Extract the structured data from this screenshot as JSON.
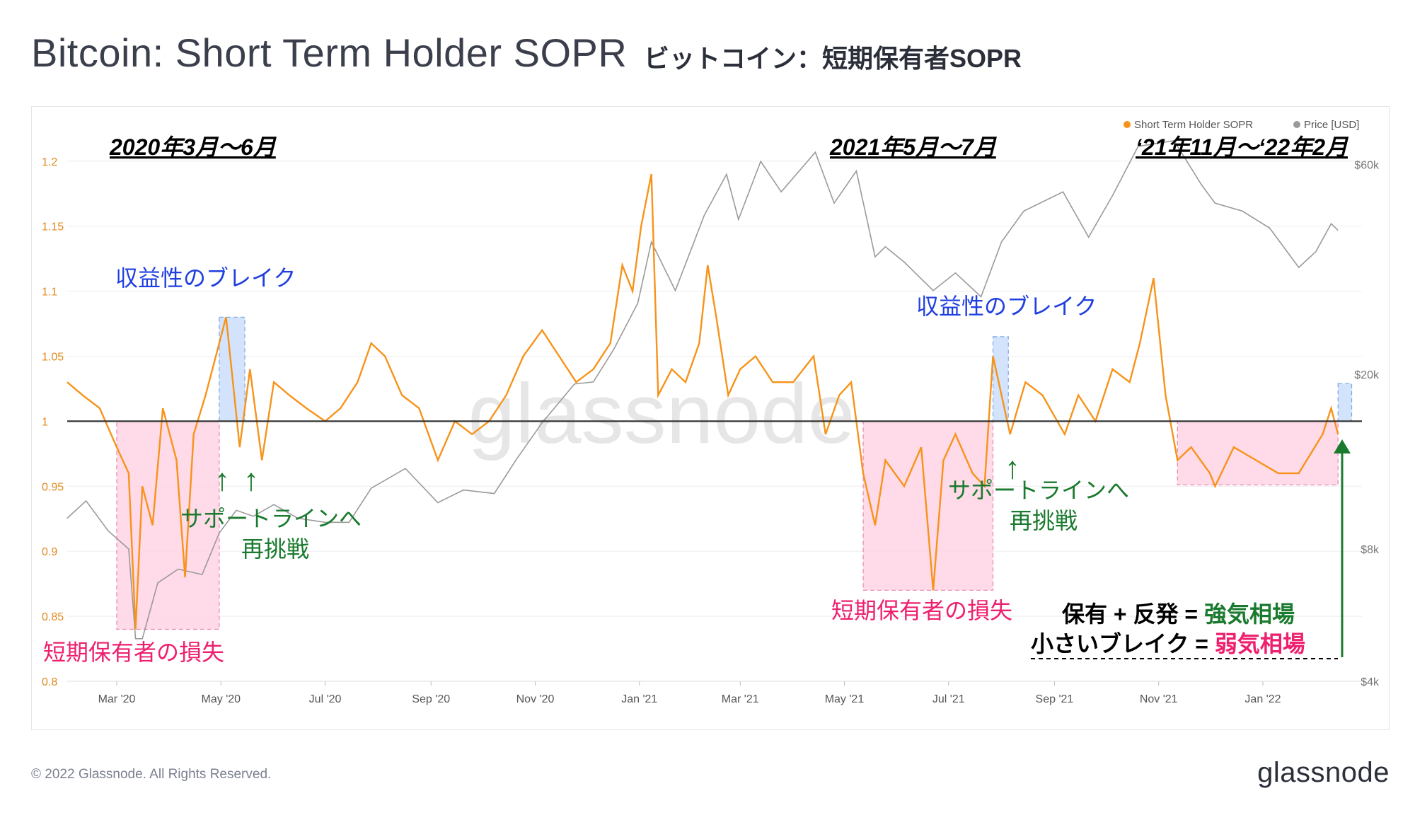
{
  "header": {
    "title": "Bitcoin: Short Term Holder SOPR",
    "subtitle": "ビットコイン：短期保有者SOPR"
  },
  "footer": {
    "copyright": "© 2022 Glassnode. All Rights Reserved.",
    "logo": "glassnode"
  },
  "watermark": "glassnode",
  "colors": {
    "sopr": "#f7931a",
    "price": "#9a9a9a",
    "baseline": "#333333",
    "loss_fill": "#ffd6e6",
    "loss_border": "#e57aa3",
    "profit_fill": "#cfe1fb",
    "profit_border": "#6f9ee3",
    "blue_text": "#1f3fe0",
    "green_text": "#1a7a2e",
    "pink_text": "#ee1f6e",
    "black_text": "#000000"
  },
  "chart_data": {
    "type": "line",
    "title": "Bitcoin: Short Term Holder SOPR",
    "x_ticks": [
      "Mar '20",
      "May '20",
      "Jul '20",
      "Sep '20",
      "Nov '20",
      "Jan '21",
      "Mar '21",
      "May '21",
      "Jul '21",
      "Sep '21",
      "Nov '21",
      "Jan '22"
    ],
    "x_range": [
      "2020-02-01",
      "2022-02-28"
    ],
    "ylim_left": [
      0.8,
      1.22
    ],
    "left_ticks": [
      "0.8",
      "0.85",
      "0.9",
      "0.95",
      "1",
      "1.05",
      "1.1",
      "1.15",
      "1.2"
    ],
    "ylim_right_usd": [
      4000,
      70000
    ],
    "right_ticks": [
      {
        "label": "$4k",
        "value": 4000
      },
      {
        "label": "$8k",
        "value": 8000
      },
      {
        "label": "$20k",
        "value": 20000
      },
      {
        "label": "$60k",
        "value": 60000
      }
    ],
    "legend": [
      {
        "name": "Short Term Holder SOPR",
        "color": "#f7931a"
      },
      {
        "name": "Price [USD]",
        "color": "#9a9a9a"
      }
    ],
    "legend_position": "top-right",
    "baseline": 1.0,
    "series": [
      {
        "name": "Short Term Holder SOPR",
        "axis": "left",
        "points": [
          [
            "2020-02-01",
            1.03
          ],
          [
            "2020-02-10",
            1.02
          ],
          [
            "2020-02-20",
            1.01
          ],
          [
            "2020-03-01",
            0.98
          ],
          [
            "2020-03-08",
            0.96
          ],
          [
            "2020-03-12",
            0.84
          ],
          [
            "2020-03-16",
            0.95
          ],
          [
            "2020-03-22",
            0.92
          ],
          [
            "2020-03-28",
            1.01
          ],
          [
            "2020-04-05",
            0.97
          ],
          [
            "2020-04-10",
            0.88
          ],
          [
            "2020-04-15",
            0.99
          ],
          [
            "2020-04-22",
            1.02
          ],
          [
            "2020-04-30",
            1.06
          ],
          [
            "2020-05-04",
            1.08
          ],
          [
            "2020-05-08",
            1.03
          ],
          [
            "2020-05-12",
            0.98
          ],
          [
            "2020-05-18",
            1.04
          ],
          [
            "2020-05-25",
            0.97
          ],
          [
            "2020-06-01",
            1.03
          ],
          [
            "2020-06-10",
            1.02
          ],
          [
            "2020-06-20",
            1.01
          ],
          [
            "2020-07-01",
            1.0
          ],
          [
            "2020-07-10",
            1.01
          ],
          [
            "2020-07-20",
            1.03
          ],
          [
            "2020-07-28",
            1.06
          ],
          [
            "2020-08-05",
            1.05
          ],
          [
            "2020-08-15",
            1.02
          ],
          [
            "2020-08-25",
            1.01
          ],
          [
            "2020-09-05",
            0.97
          ],
          [
            "2020-09-15",
            1.0
          ],
          [
            "2020-09-25",
            0.99
          ],
          [
            "2020-10-05",
            1.0
          ],
          [
            "2020-10-15",
            1.02
          ],
          [
            "2020-10-25",
            1.05
          ],
          [
            "2020-11-05",
            1.07
          ],
          [
            "2020-11-15",
            1.05
          ],
          [
            "2020-11-25",
            1.03
          ],
          [
            "2020-12-05",
            1.04
          ],
          [
            "2020-12-15",
            1.06
          ],
          [
            "2020-12-22",
            1.12
          ],
          [
            "2020-12-28",
            1.1
          ],
          [
            "2021-01-02",
            1.15
          ],
          [
            "2021-01-08",
            1.19
          ],
          [
            "2021-01-12",
            1.02
          ],
          [
            "2021-01-20",
            1.04
          ],
          [
            "2021-01-28",
            1.03
          ],
          [
            "2021-02-05",
            1.06
          ],
          [
            "2021-02-10",
            1.12
          ],
          [
            "2021-02-15",
            1.08
          ],
          [
            "2021-02-22",
            1.02
          ],
          [
            "2021-03-01",
            1.04
          ],
          [
            "2021-03-10",
            1.05
          ],
          [
            "2021-03-20",
            1.03
          ],
          [
            "2021-04-01",
            1.03
          ],
          [
            "2021-04-13",
            1.05
          ],
          [
            "2021-04-20",
            0.99
          ],
          [
            "2021-04-28",
            1.02
          ],
          [
            "2021-05-05",
            1.03
          ],
          [
            "2021-05-12",
            0.96
          ],
          [
            "2021-05-19",
            0.92
          ],
          [
            "2021-05-25",
            0.97
          ],
          [
            "2021-06-05",
            0.95
          ],
          [
            "2021-06-15",
            0.98
          ],
          [
            "2021-06-22",
            0.87
          ],
          [
            "2021-06-28",
            0.97
          ],
          [
            "2021-07-05",
            0.99
          ],
          [
            "2021-07-15",
            0.96
          ],
          [
            "2021-07-22",
            0.95
          ],
          [
            "2021-07-27",
            1.05
          ],
          [
            "2021-08-01",
            1.02
          ],
          [
            "2021-08-06",
            0.99
          ],
          [
            "2021-08-15",
            1.03
          ],
          [
            "2021-08-25",
            1.02
          ],
          [
            "2021-09-07",
            0.99
          ],
          [
            "2021-09-15",
            1.02
          ],
          [
            "2021-09-25",
            1.0
          ],
          [
            "2021-10-05",
            1.04
          ],
          [
            "2021-10-15",
            1.03
          ],
          [
            "2021-10-21",
            1.06
          ],
          [
            "2021-10-29",
            1.11
          ],
          [
            "2021-11-05",
            1.02
          ],
          [
            "2021-11-12",
            0.97
          ],
          [
            "2021-11-20",
            0.98
          ],
          [
            "2021-12-01",
            0.96
          ],
          [
            "2021-12-04",
            0.95
          ],
          [
            "2021-12-15",
            0.98
          ],
          [
            "2021-12-28",
            0.97
          ],
          [
            "2022-01-10",
            0.96
          ],
          [
            "2022-01-22",
            0.96
          ],
          [
            "2022-02-05",
            0.99
          ],
          [
            "2022-02-10",
            1.01
          ],
          [
            "2022-02-14",
            0.99
          ]
        ]
      },
      {
        "name": "Price [USD]",
        "axis": "right",
        "points": [
          [
            "2020-02-01",
            9400
          ],
          [
            "2020-02-12",
            10300
          ],
          [
            "2020-02-25",
            8800
          ],
          [
            "2020-03-08",
            8000
          ],
          [
            "2020-03-12",
            5000
          ],
          [
            "2020-03-16",
            5000
          ],
          [
            "2020-03-25",
            6700
          ],
          [
            "2020-04-06",
            7200
          ],
          [
            "2020-04-20",
            7000
          ],
          [
            "2020-04-30",
            8700
          ],
          [
            "2020-05-10",
            9800
          ],
          [
            "2020-05-20",
            9500
          ],
          [
            "2020-06-01",
            10100
          ],
          [
            "2020-06-15",
            9400
          ],
          [
            "2020-07-01",
            9200
          ],
          [
            "2020-07-15",
            9200
          ],
          [
            "2020-07-28",
            11000
          ],
          [
            "2020-08-17",
            12200
          ],
          [
            "2020-09-05",
            10200
          ],
          [
            "2020-09-20",
            10900
          ],
          [
            "2020-10-08",
            10700
          ],
          [
            "2020-10-21",
            12800
          ],
          [
            "2020-11-05",
            15500
          ],
          [
            "2020-11-24",
            19000
          ],
          [
            "2020-12-05",
            19200
          ],
          [
            "2020-12-17",
            22800
          ],
          [
            "2020-12-31",
            29000
          ],
          [
            "2021-01-08",
            40000
          ],
          [
            "2021-01-22",
            31000
          ],
          [
            "2021-02-08",
            46000
          ],
          [
            "2021-02-21",
            57000
          ],
          [
            "2021-02-28",
            45000
          ],
          [
            "2021-03-13",
            61000
          ],
          [
            "2021-03-25",
            52000
          ],
          [
            "2021-04-14",
            64000
          ],
          [
            "2021-04-25",
            49000
          ],
          [
            "2021-05-08",
            58000
          ],
          [
            "2021-05-19",
            37000
          ],
          [
            "2021-05-25",
            39000
          ],
          [
            "2021-06-05",
            36000
          ],
          [
            "2021-06-22",
            31000
          ],
          [
            "2021-07-05",
            34000
          ],
          [
            "2021-07-20",
            30000
          ],
          [
            "2021-08-01",
            40000
          ],
          [
            "2021-08-14",
            47000
          ],
          [
            "2021-09-06",
            52000
          ],
          [
            "2021-09-21",
            41000
          ],
          [
            "2021-10-05",
            51000
          ],
          [
            "2021-10-20",
            66000
          ],
          [
            "2021-11-10",
            68000
          ],
          [
            "2021-11-26",
            54000
          ],
          [
            "2021-12-04",
            49000
          ],
          [
            "2021-12-20",
            47000
          ],
          [
            "2022-01-05",
            43000
          ],
          [
            "2022-01-22",
            35000
          ],
          [
            "2022-02-01",
            38000
          ],
          [
            "2022-02-10",
            44000
          ],
          [
            "2022-02-14",
            42500
          ]
        ]
      }
    ],
    "regions": [
      {
        "kind": "loss",
        "from": "2020-03-01",
        "to": "2020-04-30",
        "y_from": 0.84,
        "y_to": 1.0
      },
      {
        "kind": "profit",
        "from": "2020-04-30",
        "to": "2020-05-15",
        "y_from": 1.0,
        "y_to": 1.08
      },
      {
        "kind": "loss",
        "from": "2021-05-12",
        "to": "2021-07-27",
        "y_from": 0.87,
        "y_to": 1.0
      },
      {
        "kind": "profit",
        "from": "2021-07-27",
        "to": "2021-08-05",
        "y_from": 1.0,
        "y_to": 1.065
      },
      {
        "kind": "loss",
        "from": "2021-11-12",
        "to": "2022-02-14",
        "y_from": 0.951,
        "y_to": 1.0
      },
      {
        "kind": "profit",
        "from": "2022-02-14",
        "to": "2022-02-22",
        "y_from": 1.0,
        "y_to": 1.029
      }
    ],
    "annotations": {
      "period_labels": [
        "2020年3月～6月",
        "2021年5月～7月",
        "‘21年11月～‘22年2月"
      ],
      "profit_break": [
        "収益性のブレイク",
        "収益性のブレイク"
      ],
      "support_retest": [
        {
          "line1": "サポートラインへ",
          "line2": "再挑戦"
        },
        {
          "line1": "サポートラインへ",
          "line2": "再挑戦"
        }
      ],
      "loss_label": [
        "短期保有者の損失",
        "短期保有者の損失"
      ],
      "arrow_glyph": "↑",
      "legend_box": {
        "line1_prefix": "保有 + 反発 = ",
        "line1_highlight": "強気相場",
        "line2_prefix": "小さいブレイク = ",
        "line2_highlight": "弱気相場"
      }
    }
  }
}
